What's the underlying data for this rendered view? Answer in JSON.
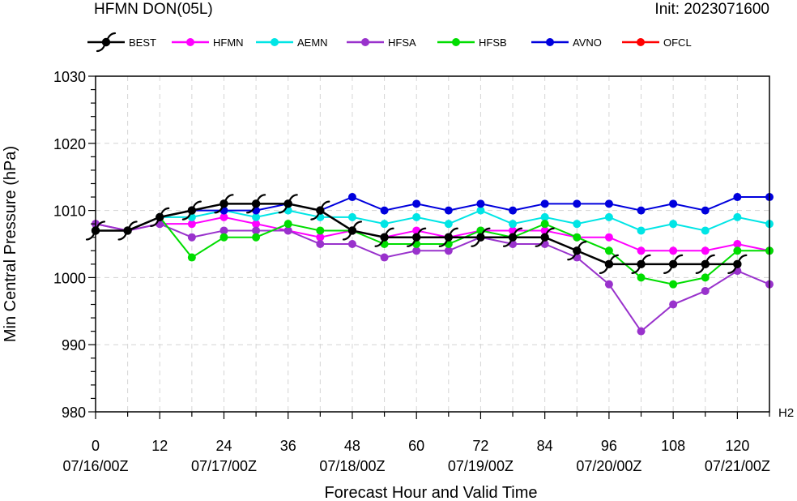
{
  "header": {
    "title": "HFMN DON(05L)",
    "init": "Init: 2023071600"
  },
  "corner_label": "H2",
  "chart_data": {
    "type": "line",
    "title": "HFMN DON(05L)",
    "xlabel": "Forecast Hour and Valid Time",
    "ylabel": "Min Central Pressure (hPa)",
    "xlim": [
      0,
      126
    ],
    "ylim": [
      980,
      1030
    ],
    "x_ticks": [
      0,
      12,
      24,
      36,
      48,
      60,
      72,
      84,
      96,
      108,
      120
    ],
    "x_tick_labels": [
      "0",
      "12",
      "24",
      "36",
      "48",
      "60",
      "72",
      "84",
      "96",
      "108",
      "120"
    ],
    "date_ticks": [
      {
        "x": 0,
        "label": "07/16/00Z"
      },
      {
        "x": 24,
        "label": "07/17/00Z"
      },
      {
        "x": 48,
        "label": "07/18/00Z"
      },
      {
        "x": 72,
        "label": "07/19/00Z"
      },
      {
        "x": 96,
        "label": "07/20/00Z"
      },
      {
        "x": 120,
        "label": "07/21/00Z"
      }
    ],
    "y_ticks": [
      980,
      990,
      1000,
      1010,
      1020,
      1030
    ],
    "grid": true,
    "legend_position": "top",
    "series": [
      {
        "name": "HFMN",
        "color": "#ff00ff",
        "marker": "circle",
        "x": [
          0,
          6,
          12,
          18,
          24,
          30,
          36,
          42,
          48,
          54,
          60,
          66,
          72,
          78,
          84,
          90,
          96,
          102,
          108,
          114,
          120,
          126
        ],
        "y": [
          1008,
          1007,
          1008,
          1008,
          1009,
          1008,
          1007,
          1006,
          1007,
          1006,
          1007,
          1006,
          1007,
          1007,
          1007,
          1006,
          1006,
          1004,
          1004,
          1004,
          1005,
          1004
        ]
      },
      {
        "name": "AEMN",
        "color": "#00e5e5",
        "marker": "circle",
        "x": [
          0,
          6,
          12,
          18,
          24,
          30,
          36,
          42,
          48,
          54,
          60,
          66,
          72,
          78,
          84,
          90,
          96,
          102,
          108,
          114,
          120,
          126
        ],
        "y": [
          1007,
          1007,
          1009,
          1009,
          1010,
          1009,
          1010,
          1009,
          1009,
          1008,
          1009,
          1008,
          1010,
          1008,
          1009,
          1008,
          1009,
          1007,
          1008,
          1007,
          1009,
          1008
        ]
      },
      {
        "name": "HFSA",
        "color": "#9932cc",
        "marker": "circle",
        "x": [
          0,
          6,
          12,
          18,
          24,
          30,
          36,
          42,
          48,
          54,
          60,
          66,
          72,
          78,
          84,
          90,
          96,
          102,
          108,
          114,
          120,
          126
        ],
        "y": [
          1008,
          1007,
          1008,
          1006,
          1007,
          1007,
          1007,
          1005,
          1005,
          1003,
          1004,
          1004,
          1006,
          1005,
          1005,
          1003,
          999,
          992,
          996,
          998,
          1001,
          999
        ]
      },
      {
        "name": "HFSB",
        "color": "#00dd00",
        "marker": "circle",
        "x": [
          0,
          6,
          12,
          18,
          24,
          30,
          36,
          42,
          48,
          54,
          60,
          66,
          72,
          78,
          84,
          90,
          96,
          102,
          108,
          114,
          120,
          126
        ],
        "y": [
          1007,
          1007,
          1009,
          1003,
          1006,
          1006,
          1008,
          1007,
          1007,
          1005,
          1005,
          1005,
          1007,
          1006,
          1008,
          1006,
          1004,
          1000,
          999,
          1000,
          1004,
          1004
        ]
      },
      {
        "name": "AVNO",
        "color": "#0000dd",
        "marker": "circle",
        "x": [
          0,
          6,
          12,
          18,
          24,
          30,
          36,
          42,
          48,
          54,
          60,
          66,
          72,
          78,
          84,
          90,
          96,
          102,
          108,
          114,
          120,
          126
        ],
        "y": [
          1007,
          1007,
          1009,
          1010,
          1010,
          1010,
          1011,
          1010,
          1012,
          1010,
          1011,
          1010,
          1011,
          1010,
          1011,
          1011,
          1011,
          1010,
          1011,
          1010,
          1012,
          1012
        ]
      },
      {
        "name": "OFCL",
        "color": "#ff0000",
        "marker": "circle",
        "x": [],
        "y": []
      },
      {
        "name": "BEST",
        "color": "#000000",
        "marker": "hurricane",
        "x": [
          0,
          6,
          12,
          18,
          24,
          30,
          36,
          42,
          48,
          54,
          60,
          66,
          72,
          78,
          84,
          90,
          96,
          102,
          108,
          114,
          120
        ],
        "y": [
          1007,
          1007,
          1009,
          1010,
          1011,
          1011,
          1011,
          1010,
          1007,
          1006,
          1006,
          1006,
          1006,
          1006,
          1006,
          1004,
          1002,
          1002,
          1002,
          1002,
          1002
        ]
      }
    ],
    "legend": [
      {
        "name": "BEST",
        "color": "#000000",
        "marker": "hurricane"
      },
      {
        "name": "HFMN",
        "color": "#ff00ff",
        "marker": "circle"
      },
      {
        "name": "AEMN",
        "color": "#00e5e5",
        "marker": "circle"
      },
      {
        "name": "HFSA",
        "color": "#9932cc",
        "marker": "circle"
      },
      {
        "name": "HFSB",
        "color": "#00dd00",
        "marker": "circle"
      },
      {
        "name": "AVNO",
        "color": "#0000dd",
        "marker": "circle"
      },
      {
        "name": "OFCL",
        "color": "#ff0000",
        "marker": "circle"
      }
    ]
  }
}
